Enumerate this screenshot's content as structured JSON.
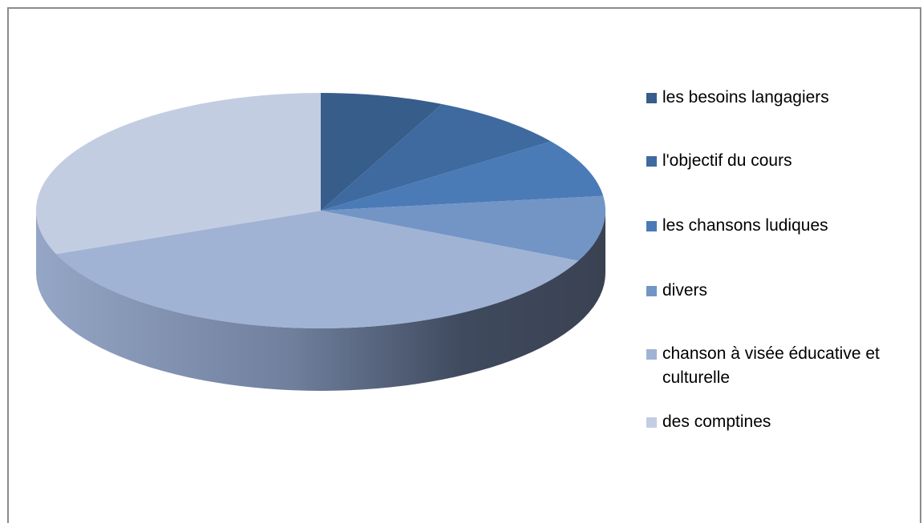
{
  "chart_data": {
    "type": "pie",
    "categories": [
      "les besoins langagiers",
      "l'objectif du cours",
      "les chansons ludiques",
      "divers",
      "chanson à visée éducative et culturelle",
      "des comptines"
    ],
    "values": [
      7,
      8,
      8,
      9,
      37,
      31
    ],
    "colors": [
      "#375d8a",
      "#3f6aa0",
      "#4a7bb7",
      "#7295c6",
      "#a0b3d4",
      "#c3cde2"
    ],
    "legend": "right"
  }
}
